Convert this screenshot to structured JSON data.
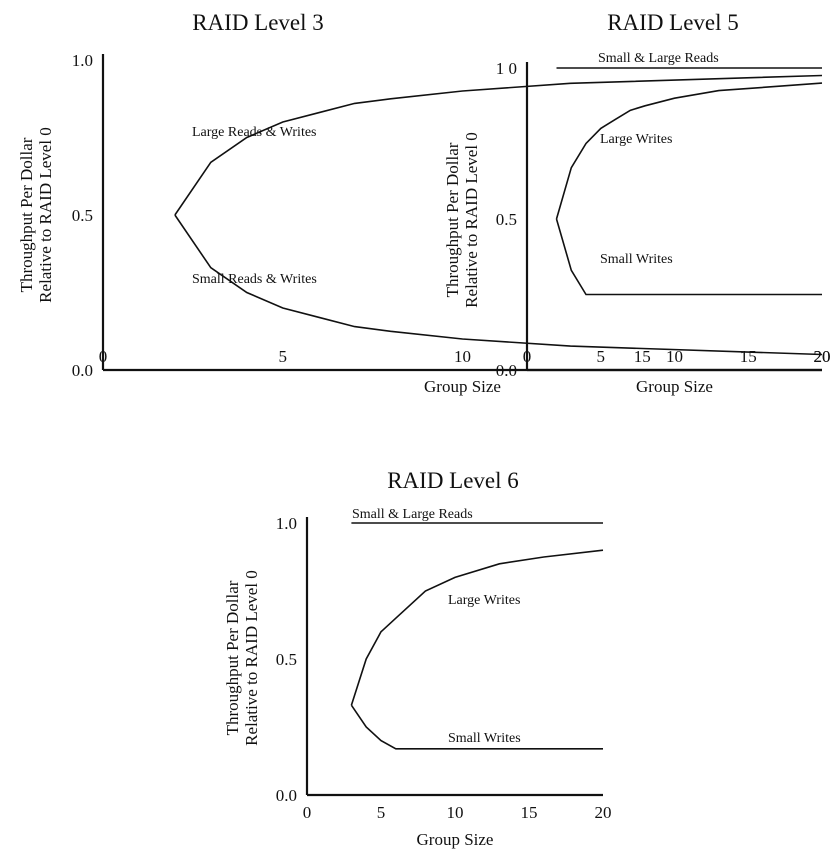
{
  "chart_data": [
    {
      "type": "line",
      "title": "RAID Level 3",
      "xlabel": "Group Size",
      "ylabel": [
        "Throughput Per Dollar",
        "Relative to RAID Level 0"
      ],
      "xlim": [
        0,
        20
      ],
      "ylim": [
        0,
        1
      ],
      "xticks": [
        "0",
        "5",
        "10",
        "15",
        "20"
      ],
      "yticks": [
        "0.0",
        "0.5",
        "1.0"
      ],
      "series": [
        {
          "name": "Large Reads & Writes",
          "x": [
            2,
            3,
            4,
            5,
            6,
            7,
            8,
            10,
            13,
            20
          ],
          "y": [
            0.5,
            0.67,
            0.75,
            0.8,
            0.83,
            0.86,
            0.875,
            0.9,
            0.925,
            0.95
          ]
        },
        {
          "name": "Small Reads & Writes",
          "x": [
            2,
            3,
            4,
            5,
            6,
            7,
            8,
            10,
            13,
            20
          ],
          "y": [
            0.5,
            0.33,
            0.25,
            0.2,
            0.17,
            0.14,
            0.125,
            0.1,
            0.077,
            0.05
          ]
        }
      ]
    },
    {
      "type": "line",
      "title": "RAID Level 5",
      "xlabel": "Group Size",
      "ylabel": [
        "Throughput Per Dollar",
        "Relative to RAID Level 0"
      ],
      "xlim": [
        0,
        20
      ],
      "ylim": [
        0,
        1
      ],
      "xticks": [
        "0",
        "5",
        "10",
        "15",
        "20"
      ],
      "yticks": [
        "0.0",
        "0.5",
        "1 0"
      ],
      "series": [
        {
          "name": "Small & Large Reads",
          "x": [
            2,
            20
          ],
          "y": [
            1.0,
            1.0
          ]
        },
        {
          "name": "Large Writes",
          "x": [
            2,
            3,
            4,
            5,
            6,
            7,
            8,
            10,
            13,
            20
          ],
          "y": [
            0.5,
            0.67,
            0.75,
            0.8,
            0.83,
            0.86,
            0.875,
            0.9,
            0.925,
            0.95
          ]
        },
        {
          "name": "Small Writes",
          "x": [
            2,
            3,
            4,
            20
          ],
          "y": [
            0.5,
            0.33,
            0.25,
            0.25
          ]
        }
      ]
    },
    {
      "type": "line",
      "title": "RAID Level 6",
      "xlabel": "Group Size",
      "ylabel": [
        "Throughput Per Dollar",
        "Relative to RAID Level 0"
      ],
      "xlim": [
        0,
        20
      ],
      "ylim": [
        0,
        1
      ],
      "xticks": [
        "0",
        "5",
        "10",
        "15",
        "20"
      ],
      "yticks": [
        "0.0",
        "0.5",
        "1.0"
      ],
      "series": [
        {
          "name": "Small & Large Reads",
          "x": [
            3,
            20
          ],
          "y": [
            1.0,
            1.0
          ]
        },
        {
          "name": "Large Writes",
          "x": [
            3,
            4,
            5,
            6,
            8,
            10,
            13,
            16,
            20
          ],
          "y": [
            0.33,
            0.5,
            0.6,
            0.65,
            0.75,
            0.8,
            0.85,
            0.875,
            0.9
          ]
        },
        {
          "name": "Small Writes",
          "x": [
            3,
            4,
            5,
            6,
            20
          ],
          "y": [
            0.33,
            0.25,
            0.2,
            0.17,
            0.17
          ]
        }
      ]
    }
  ]
}
